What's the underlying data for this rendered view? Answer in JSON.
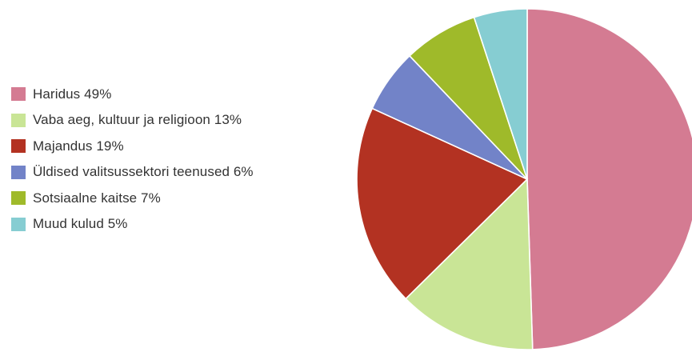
{
  "chart_data": {
    "type": "pie",
    "title": "",
    "legend_position": "left",
    "slices": [
      {
        "label": "Haridus 49%",
        "value": 49,
        "color": "#d47b92"
      },
      {
        "label": "Vaba aeg, kultuur ja religioon 13%",
        "value": 13,
        "color": "#c9e596"
      },
      {
        "label": "Majandus 19%",
        "value": 19,
        "color": "#b33222"
      },
      {
        "label": "Üldised valitsussektori teenused 6%",
        "value": 6,
        "color": "#7283c8"
      },
      {
        "label": "Sotsiaalne kaitse 7%",
        "value": 7,
        "color": "#9fba2a"
      },
      {
        "label": "Muud kulud 5%",
        "value": 5,
        "color": "#86cdd2"
      }
    ]
  }
}
